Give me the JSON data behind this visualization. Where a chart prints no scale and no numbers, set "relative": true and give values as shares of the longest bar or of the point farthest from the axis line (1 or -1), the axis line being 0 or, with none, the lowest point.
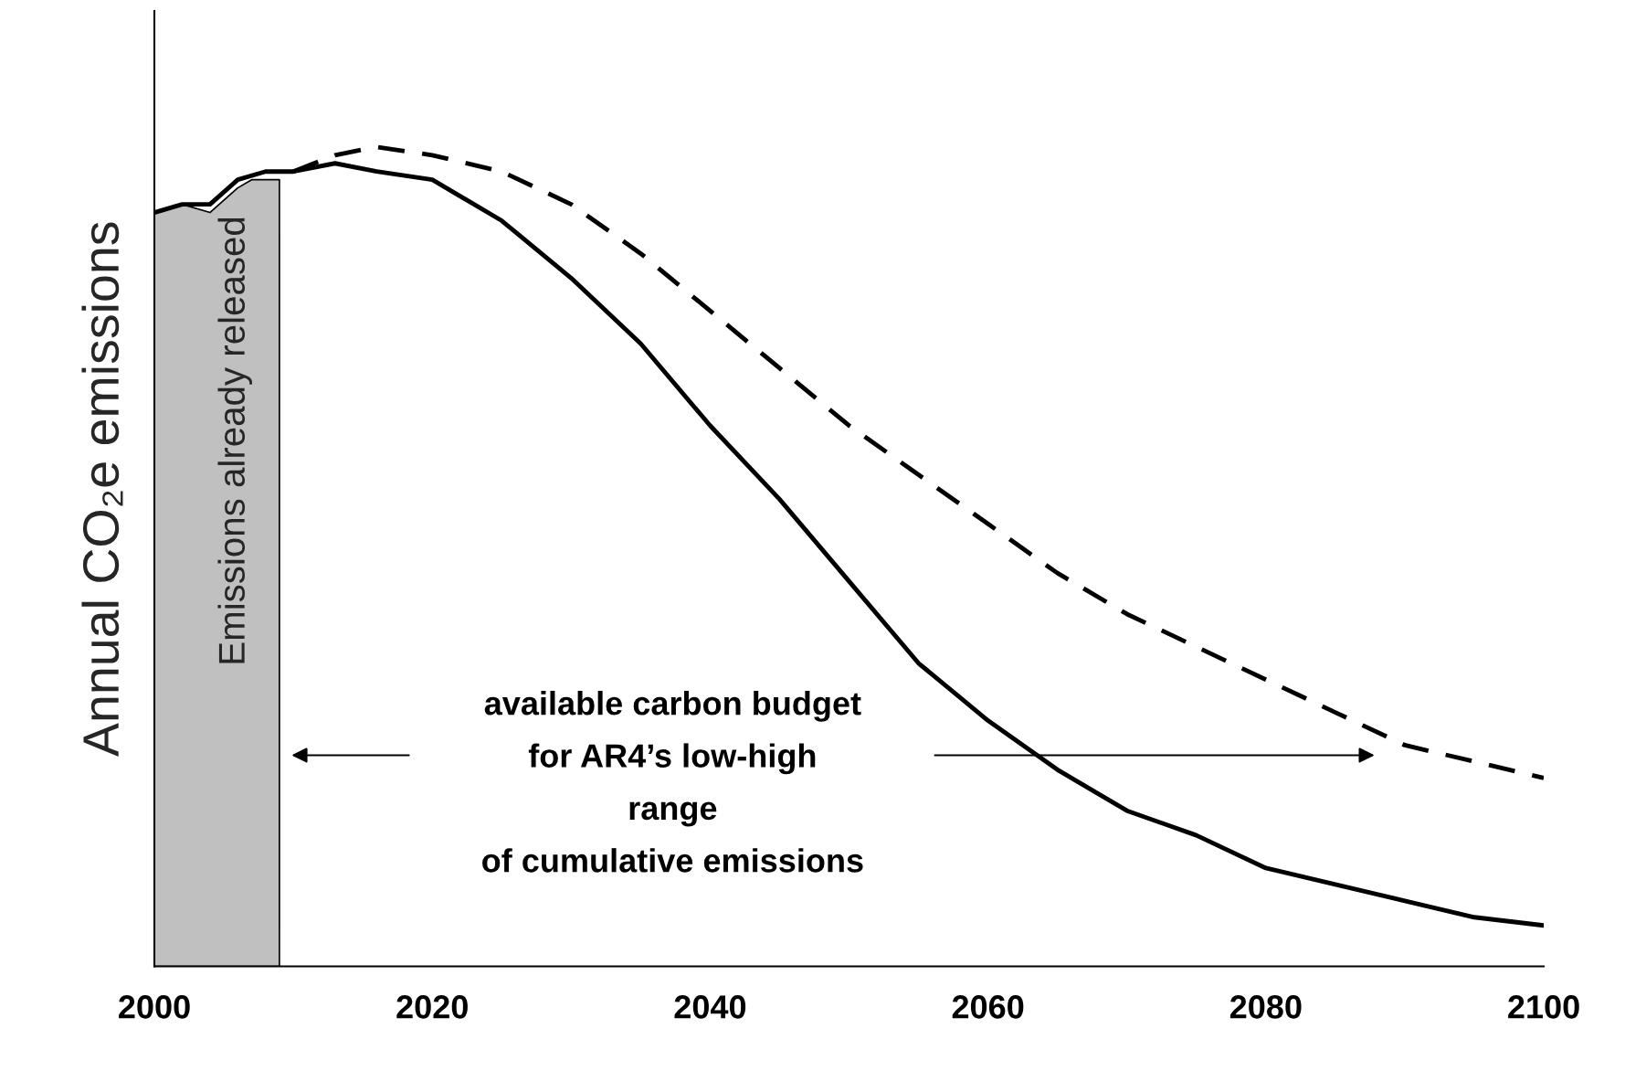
{
  "chart_data": {
    "type": "line",
    "relative": true,
    "ylabel": "Annual CO₂e emissions",
    "xlim": [
      2000,
      2100
    ],
    "xticks": [
      2000,
      2020,
      2040,
      2060,
      2080,
      2100
    ],
    "grid": false,
    "legend": false,
    "series": [
      {
        "type": "area",
        "color": "#c0c0c0",
        "x": [
          2000,
          2002,
          2004,
          2006,
          2007,
          2009
        ],
        "values": [
          0.92,
          0.93,
          0.92,
          0.95,
          0.96,
          0.96
        ]
      },
      {
        "color": "#000000",
        "line_style": "solid",
        "x": [
          2000,
          2002,
          2004,
          2006,
          2008,
          2010,
          2013,
          2016,
          2020,
          2025,
          2030,
          2035,
          2040,
          2045,
          2050,
          2055,
          2060,
          2065,
          2070,
          2075,
          2080,
          2085,
          2090,
          2095,
          2100
        ],
        "values": [
          0.92,
          0.93,
          0.93,
          0.96,
          0.97,
          0.97,
          0.98,
          0.97,
          0.96,
          0.91,
          0.84,
          0.76,
          0.66,
          0.57,
          0.47,
          0.37,
          0.3,
          0.24,
          0.19,
          0.16,
          0.12,
          0.1,
          0.08,
          0.06,
          0.05
        ]
      },
      {
        "color": "#000000",
        "line_style": "dashed",
        "x": [
          2010,
          2013,
          2016,
          2020,
          2025,
          2030,
          2035,
          2040,
          2045,
          2050,
          2055,
          2060,
          2065,
          2070,
          2075,
          2080,
          2085,
          2090,
          2095,
          2100
        ],
        "values": [
          0.97,
          0.99,
          1,
          0.99,
          0.97,
          0.93,
          0.87,
          0.8,
          0.73,
          0.66,
          0.6,
          0.54,
          0.48,
          0.43,
          0.39,
          0.35,
          0.31,
          0.27,
          0.25,
          0.23
        ]
      }
    ],
    "annotations": [
      "Emissions already released",
      "available carbon budget\nfor AR4’s low-high\nrange\nof cumulative emissions"
    ]
  }
}
